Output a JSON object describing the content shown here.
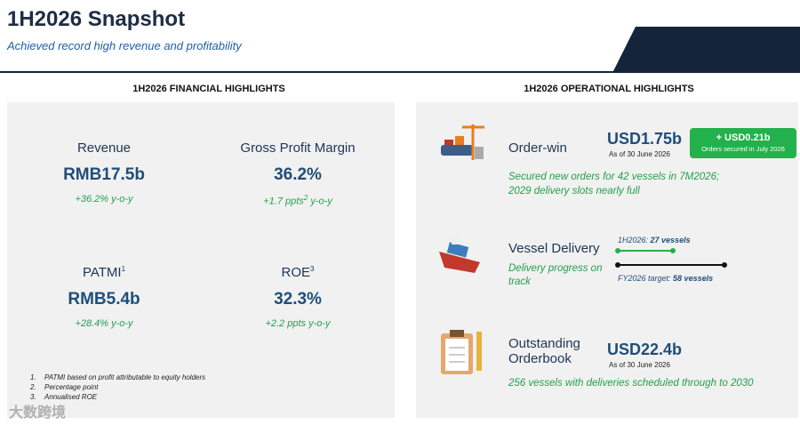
{
  "header": {
    "title": "1H2026 Snapshot",
    "subtitle": "Achieved record high revenue and profitability"
  },
  "financial": {
    "heading": "1H2026 FINANCIAL HIGHLIGHTS",
    "metrics": [
      {
        "label": "Revenue",
        "value": "RMB17.5b",
        "change": "+36.2% y-o-y"
      },
      {
        "label": "Gross Profit Margin",
        "value": "36.2%",
        "change_pre": "+1.7 ppts",
        "change_note": "2",
        "change_post": " y-o-y"
      },
      {
        "label": "PATMI",
        "note": "1",
        "value": "RMB5.4b",
        "change": "+28.4% y-o-y"
      },
      {
        "label": "ROE",
        "note": "3",
        "value": "32.3%",
        "change": "+2.2 ppts y-o-y"
      }
    ],
    "footnotes": [
      {
        "num": "1.",
        "text": "PATMI based on profit attributable to equity holders"
      },
      {
        "num": "2.",
        "text": "Percentage point"
      },
      {
        "num": "3.",
        "text": "Annualised ROE"
      }
    ]
  },
  "operational": {
    "heading": "1H2026 OPERATIONAL HIGHLIGHTS",
    "order_win": {
      "label": "Order-win",
      "value": "USD1.75b",
      "asof": "As of 30 June 2026",
      "badge_value": "+ USD0.21b",
      "badge_text": "Orders secured in July 2026",
      "detail": [
        "Secured new orders for 42 vessels in 7M2026;",
        "2029 delivery slots nearly full"
      ]
    },
    "delivery": {
      "label": "Vessel Delivery",
      "detail": [
        "Delivery progress on",
        "track"
      ],
      "progress_label": "1H2026: ",
      "progress_value": "27 vessels",
      "target_label": "FY2026 target: ",
      "target_value": "58 vessels"
    },
    "orderbook": {
      "label": [
        "Outstanding",
        "Orderbook"
      ],
      "value": "USD22.4b",
      "asof": "As of 30 June 2026",
      "detail": "256 vessels with deliveries scheduled through to 2030"
    }
  },
  "watermark": "大数跨境"
}
